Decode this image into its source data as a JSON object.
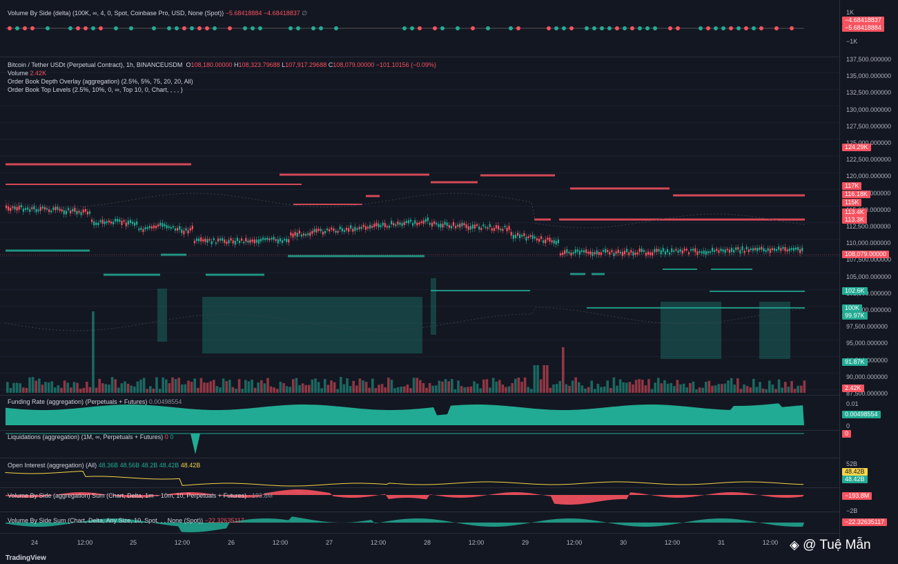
{
  "colors": {
    "background": "#131722",
    "up": "#22ab94",
    "down": "#f7525f",
    "ma": "#f7d54a",
    "grid": "#2a2e39"
  },
  "panes": {
    "vbs_delta": {
      "label": "Volume By Side (delta) (100K, ∞, 4, 0, Spot, Coinbase Pro, USD, None (Spot))",
      "v1": "−5.68418884",
      "v2": "−4.68418837",
      "sym": "∅",
      "ticks": [
        "1K",
        "−1K"
      ],
      "tags": [
        "−4.68418837",
        "−5.68418884"
      ]
    },
    "main": {
      "legend_line1_title": "Bitcoin / Tether USDt (Perpetual Contract), 1h, BINANCEUSDM",
      "o_lbl": "O",
      "o_val": "108,180.00000",
      "h_lbl": "H",
      "h_val": "108,323.79688",
      "l_lbl": "L",
      "l_val": "107,917.29688",
      "c_lbl": "C",
      "c_val": "108,079.00000",
      "chg": "−101.10156 (−0.09%)",
      "volume_label": "Volume",
      "volume_value": "2.42K",
      "legend_line3": "Order Book Depth Overlay (aggregation) (2.5%, 5%, 75, 20, 20, All)",
      "legend_line4": "Order Book Top Levels (2.5%, 10%, 0, ∞, Top 10, 0, Chart, , , , )",
      "ticks": [
        "137,500.000000",
        "135,000.000000",
        "132,500.000000",
        "130,000.000000",
        "127,500.000000",
        "125,000.000000",
        "122,500.000000",
        "120,000.000000",
        "117,500.000000",
        "115,000.000000",
        "112,500.000000",
        "110,000.000000",
        "107,500.000000",
        "105,000.000000",
        "102,500.000000",
        "100,000.000000",
        "97,500.000000",
        "95,000.000000",
        "92,500.000000",
        "90,000.000000",
        "87,500.000000"
      ],
      "tags": [
        {
          "t": "124.29K",
          "c": "red"
        },
        {
          "t": "117K",
          "c": "red"
        },
        {
          "t": "116.18K",
          "c": "red"
        },
        {
          "t": "115K",
          "c": "red"
        },
        {
          "t": "113.4K",
          "c": "red"
        },
        {
          "t": "113.3K",
          "c": "red"
        },
        {
          "t": "108,079.00000",
          "c": "red"
        },
        {
          "t": "102.6K",
          "c": "teal"
        },
        {
          "t": "100K",
          "c": "teal"
        },
        {
          "t": "99.97K",
          "c": "teal"
        },
        {
          "t": "91.87K",
          "c": "teal"
        },
        {
          "t": "2.42K",
          "c": "red"
        }
      ]
    },
    "funding": {
      "label": "Funding Rate (aggregation) (Perpetuals + Futures)",
      "value": "0.00498554",
      "ticks": [
        "0.01",
        "0"
      ],
      "tag": "0.00498554"
    },
    "liquidations": {
      "label": "Liquidations (aggregation) (1M, ∞, Perpetuals + Futures)",
      "v1": "0",
      "v2": "0",
      "tag": "0"
    },
    "oi": {
      "label": "Open Interest (aggregation) (All)",
      "values": [
        "48.36B",
        "48.56B",
        "48.2B",
        "48.42B"
      ],
      "last": "48.42B",
      "ticks": [
        "52B"
      ],
      "tags": [
        "48.42B",
        "48.42B"
      ]
    },
    "vbs_agg": {
      "label": "Volume By Side (aggregation) Sum (Chart, Delta, 1m − 10m, 10, Perpetuals + Futures)",
      "value": "−193.8M",
      "tick": "−2B",
      "tag": "−193.8M"
    },
    "vbs_sum": {
      "label": "Volume By Side Sum (Chart, Delta, Any Size, 10, Spot, , , None (Spot))",
      "value": "−22.32635117",
      "tag": "−22.32635117"
    }
  },
  "time_axis": [
    "24",
    "12:00",
    "25",
    "12:00",
    "26",
    "12:00",
    "27",
    "12:00",
    "28",
    "12:00",
    "29",
    "12:00",
    "30",
    "12:00",
    "31",
    "12:00"
  ],
  "footer": {
    "brand": "TradingView",
    "watermark": "@ Tuệ Mẫn"
  }
}
